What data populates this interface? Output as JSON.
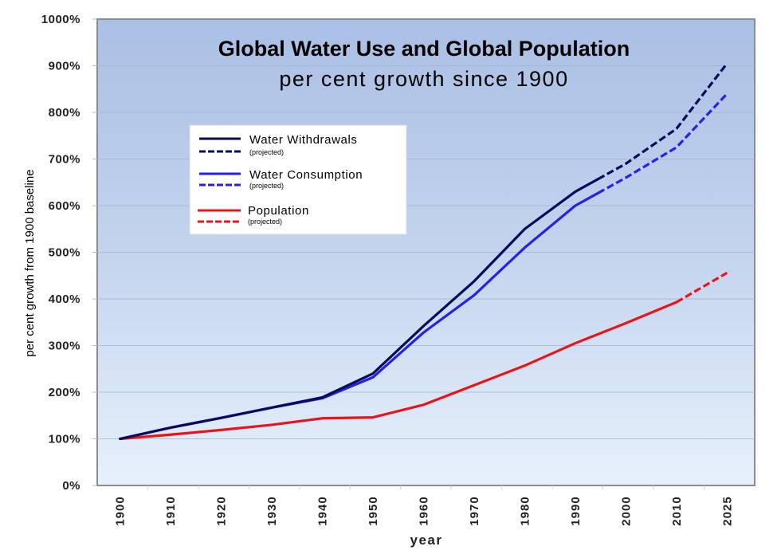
{
  "chart_data": {
    "type": "line",
    "title": "Global Water Use and Global Population",
    "subtitle": "per cent growth since 1900",
    "xlabel": "year",
    "ylabel": "per cent growth from 1900 baseline",
    "categories": [
      "1900",
      "1910",
      "1920",
      "1930",
      "1940",
      "1950",
      "1960",
      "1970",
      "1980",
      "1990",
      "2000",
      "2010",
      "2025"
    ],
    "ylim": [
      0,
      1000
    ],
    "yticks": [
      0,
      100,
      200,
      300,
      400,
      500,
      600,
      700,
      800,
      900,
      1000
    ],
    "ytick_labels": [
      "0%",
      "100%",
      "200%",
      "300%",
      "400%",
      "500%",
      "600%",
      "700%",
      "800%",
      "900%",
      "1000%"
    ],
    "grid": true,
    "legend_position": "upper-left",
    "series": [
      {
        "name": "Water Withdrawals",
        "projected_label": "(projected)",
        "color": "#0a0a5c",
        "values": [
          100,
          124,
          145,
          167,
          189,
          240,
          342,
          438,
          550,
          630,
          690,
          765,
          905
        ],
        "projected_from_index": 9
      },
      {
        "name": "Water Consumption",
        "projected_label": "(projected)",
        "color": "#2a1fe8",
        "values": [
          100,
          124,
          145,
          167,
          187,
          232,
          328,
          408,
          510,
          600,
          660,
          725,
          840
        ],
        "projected_from_index": 9
      },
      {
        "name": "Population",
        "projected_label": "(projected)",
        "color": "#e8141a",
        "values": [
          100,
          109,
          119,
          130,
          144,
          146,
          173,
          215,
          257,
          305,
          348,
          393,
          456
        ],
        "projected_from_index": 11
      }
    ]
  }
}
